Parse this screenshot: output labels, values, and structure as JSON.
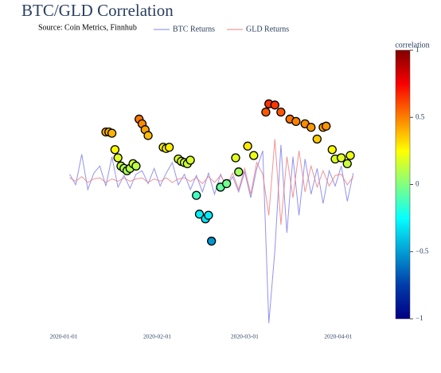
{
  "chart_data": {
    "type": "line",
    "title": "BTC/GLD Correlation",
    "subtitle": "Source: Coin Metrics, Finnhub",
    "x": [
      "2020-01-03",
      "2020-01-05",
      "2020-01-07",
      "2020-01-09",
      "2020-01-11",
      "2020-01-13",
      "2020-01-15",
      "2020-01-17",
      "2020-01-19",
      "2020-01-21",
      "2020-01-23",
      "2020-01-25",
      "2020-01-27",
      "2020-01-29",
      "2020-01-31",
      "2020-02-02",
      "2020-02-04",
      "2020-02-06",
      "2020-02-08",
      "2020-02-10",
      "2020-02-12",
      "2020-02-14",
      "2020-02-16",
      "2020-02-18",
      "2020-02-20",
      "2020-02-22",
      "2020-02-24",
      "2020-02-26",
      "2020-02-28",
      "2020-03-01",
      "2020-03-03",
      "2020-03-05",
      "2020-03-07",
      "2020-03-09",
      "2020-03-11",
      "2020-03-13",
      "2020-03-15",
      "2020-03-17",
      "2020-03-19",
      "2020-03-21",
      "2020-03-23",
      "2020-03-25",
      "2020-03-27",
      "2020-03-29",
      "2020-03-31",
      "2020-04-02",
      "2020-04-04",
      "2020-04-06"
    ],
    "series": [
      {
        "name": "BTC Returns",
        "color": "#8080ee",
        "values": [
          0.05,
          -0.04,
          0.22,
          -0.08,
          0.06,
          0.12,
          -0.05,
          0.2,
          -0.06,
          0.04,
          -0.07,
          0.05,
          0.08,
          -0.03,
          0.1,
          -0.05,
          0.06,
          0.15,
          -0.04,
          0.05,
          -0.08,
          0.04,
          -0.1,
          0.06,
          -0.12,
          0.05,
          -0.06,
          0.03,
          -0.1,
          0.07,
          -0.15,
          0.1,
          0.25,
          -1.22,
          -0.6,
          0.3,
          -0.45,
          0.2,
          -0.3,
          0.18,
          -0.12,
          0.1,
          -0.2,
          0.08,
          -0.05,
          0.12,
          -0.18,
          0.06
        ]
      },
      {
        "name": "GLD Returns",
        "color": "#ee8080",
        "values": [
          0.02,
          -0.01,
          0.03,
          -0.02,
          0.01,
          0.02,
          -0.02,
          0.01,
          -0.01,
          0.02,
          -0.01,
          0.01,
          0.02,
          -0.02,
          0.01,
          -0.01,
          0.02,
          -0.02,
          0.01,
          0.02,
          -0.01,
          0.02,
          -0.03,
          0.03,
          -0.02,
          0.04,
          -0.05,
          0.06,
          -0.08,
          0.1,
          -0.12,
          0.15,
          0.05,
          -0.3,
          0.35,
          -0.38,
          0.2,
          -0.15,
          0.25,
          -0.1,
          0.12,
          -0.06,
          0.08,
          -0.05,
          0.04,
          0.05,
          -0.04,
          0.03
        ]
      }
    ],
    "correlation": {
      "name": "correlation",
      "x": [
        "2020-01-15",
        "2020-01-16",
        "2020-01-17",
        "2020-01-18",
        "2020-01-19",
        "2020-01-20",
        "2020-01-21",
        "2020-01-22",
        "2020-01-23",
        "2020-01-24",
        "2020-01-25",
        "2020-01-26",
        "2020-01-27",
        "2020-01-28",
        "2020-01-29",
        "2020-02-03",
        "2020-02-04",
        "2020-02-05",
        "2020-02-08",
        "2020-02-09",
        "2020-02-10",
        "2020-02-11",
        "2020-02-12",
        "2020-02-14",
        "2020-02-15",
        "2020-02-17",
        "2020-02-18",
        "2020-02-19",
        "2020-02-22",
        "2020-02-24",
        "2020-02-27",
        "2020-02-28",
        "2020-03-02",
        "2020-03-04",
        "2020-03-08",
        "2020-03-09",
        "2020-03-11",
        "2020-03-13",
        "2020-03-16",
        "2020-03-18",
        "2020-03-21",
        "2020-03-23",
        "2020-03-25",
        "2020-03-27",
        "2020-03-28",
        "2020-03-30",
        "2020-03-31",
        "2020-04-02",
        "2020-04-04",
        "2020-04-05"
      ],
      "values": [
        0.41,
        0.41,
        0.4,
        0.26,
        0.19,
        0.12,
        0.1,
        0.08,
        0.1,
        0.14,
        0.12,
        0.52,
        0.48,
        0.43,
        0.38,
        0.28,
        0.27,
        0.28,
        0.18,
        0.16,
        0.15,
        0.14,
        0.17,
        -0.13,
        -0.29,
        -0.33,
        -0.3,
        -0.52,
        -0.06,
        -0.03,
        0.19,
        0.07,
        0.29,
        0.21,
        0.58,
        0.65,
        0.64,
        0.58,
        0.52,
        0.5,
        0.48,
        0.45,
        0.35,
        0.45,
        0.46,
        0.26,
        0.18,
        0.19,
        0.14,
        0.21
      ],
      "clim": [
        -1,
        1
      ],
      "cticks": [
        {
          "value": 1,
          "label": "1"
        },
        {
          "value": 0.5,
          "label": "0.5"
        },
        {
          "value": 0,
          "label": "0"
        },
        {
          "value": -0.5,
          "label": "−0.5"
        },
        {
          "value": -1,
          "label": "−1"
        }
      ],
      "colorscale": [
        [
          0,
          "#000083"
        ],
        [
          0.125,
          "#003caa"
        ],
        [
          0.375,
          "#05ffff"
        ],
        [
          0.625,
          "#ffff00"
        ],
        [
          0.875,
          "#fa0000"
        ],
        [
          1,
          "#800000"
        ]
      ]
    },
    "xlim": [
      "2019-12-27",
      "2020-04-10"
    ],
    "xticks": [
      "2020-01-01",
      "2020-02-01",
      "2020-03-01",
      "2020-04-01"
    ],
    "ylim": [
      -1.25,
      1.25
    ]
  }
}
